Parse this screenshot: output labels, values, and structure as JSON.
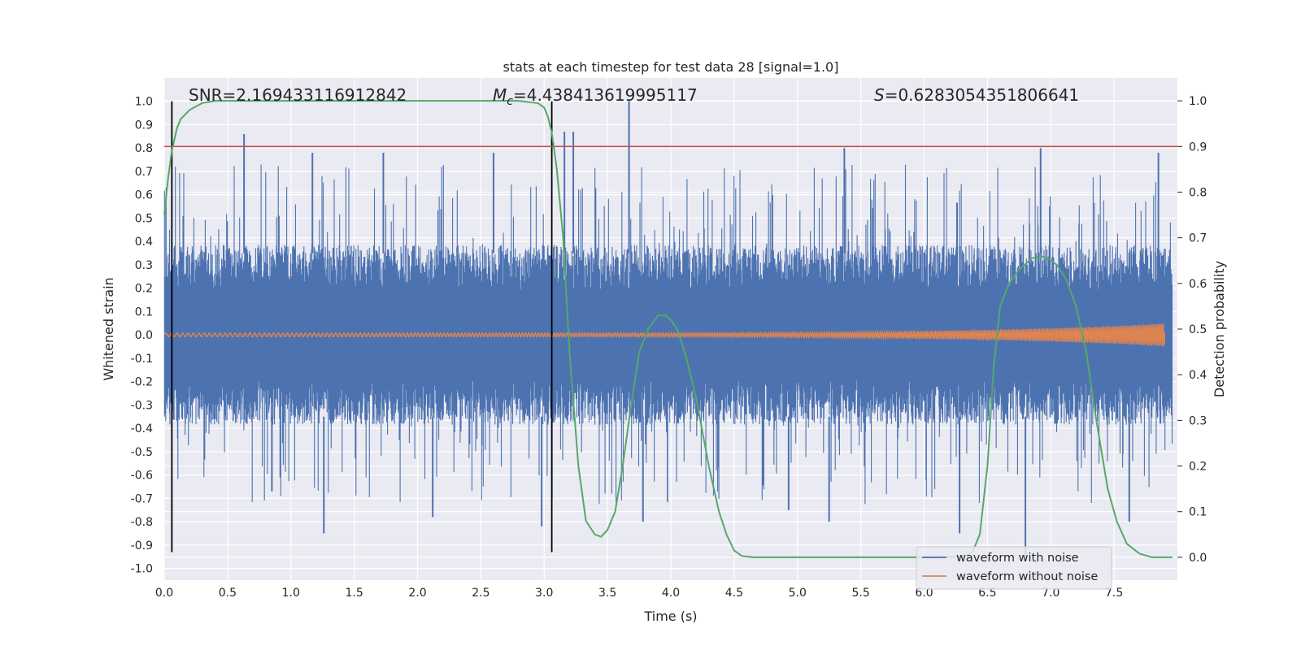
{
  "chart_data": {
    "type": "line",
    "title": "stats at each timestep for test data 28 [signal=1.0]",
    "xlabel": "Time (s)",
    "ylabel_left": "Whitened strain",
    "ylabel_right": "Detection probability",
    "xlim": [
      0.0,
      8.0
    ],
    "ylim_left": [
      -1.05,
      1.1
    ],
    "ylim_right": [
      -0.05,
      1.05
    ],
    "xticks": [
      "0.0",
      "0.5",
      "1.0",
      "1.5",
      "2.0",
      "2.5",
      "3.0",
      "3.5",
      "4.0",
      "4.5",
      "5.0",
      "5.5",
      "6.0",
      "6.5",
      "7.0",
      "7.5"
    ],
    "yticks_left": [
      "1.0",
      "0.9",
      "0.8",
      "0.7",
      "0.6",
      "0.5",
      "0.4",
      "0.3",
      "0.2",
      "0.1",
      "0.0",
      "-0.1",
      "-0.2",
      "-0.3",
      "-0.4",
      "-0.5",
      "-0.6",
      "-0.7",
      "-0.8",
      "-0.9",
      "-1.0"
    ],
    "yticks_right": [
      "1.0",
      "0.9",
      "0.8",
      "0.7",
      "0.6",
      "0.5",
      "0.4",
      "0.3",
      "0.2",
      "0.1",
      "0.0"
    ],
    "grid": true,
    "legend_position": "lower-right",
    "annotations": {
      "snr": "SNR=2.169433116912842",
      "mc_symbol": "M",
      "mc_sub": "c",
      "mc_value": "=4.438413619995117",
      "s_symbol": "S",
      "s_value": "=0.6283054351806641"
    },
    "threshold_probability": 0.9,
    "vertical_markers_s": [
      0.06,
      3.06
    ],
    "series": [
      {
        "name": "waveform with noise",
        "color": "#4c72b0",
        "axis": "left",
        "envelope_typical": 0.35,
        "peaks": [
          {
            "x": 0.63,
            "y": 0.86
          },
          {
            "x": 1.17,
            "y": 0.78
          },
          {
            "x": 1.73,
            "y": 0.78
          },
          {
            "x": 2.6,
            "y": 0.78
          },
          {
            "x": 3.16,
            "y": 0.87
          },
          {
            "x": 3.23,
            "y": 0.87
          },
          {
            "x": 3.67,
            "y": 1.0
          },
          {
            "x": 5.37,
            "y": 0.8
          },
          {
            "x": 6.92,
            "y": 0.8
          },
          {
            "x": 7.85,
            "y": 0.78
          },
          {
            "x": 1.26,
            "y": -0.85
          },
          {
            "x": 2.98,
            "y": -0.82
          },
          {
            "x": 3.78,
            "y": -0.8
          },
          {
            "x": 6.28,
            "y": -0.85
          },
          {
            "x": 6.8,
            "y": -0.95
          },
          {
            "x": 0.85,
            "y": -0.67
          },
          {
            "x": 2.12,
            "y": -0.78
          },
          {
            "x": 5.25,
            "y": -0.8
          },
          {
            "x": 7.62,
            "y": -0.8
          },
          {
            "x": 4.93,
            "y": -0.75
          }
        ]
      },
      {
        "name": "waveform without noise",
        "color": "#dd8452",
        "axis": "left",
        "amplitude_start": 0.008,
        "amplitude_end": 0.05,
        "chirp_end_s": 7.9
      },
      {
        "name": "detection probability",
        "color": "#55a868",
        "axis": "right",
        "x": [
          0.0,
          0.03,
          0.06,
          0.1,
          0.13,
          0.2,
          0.3,
          0.4,
          0.6,
          1.0,
          2.0,
          2.8,
          2.95,
          3.0,
          3.03,
          3.06,
          3.1,
          3.15,
          3.2,
          3.27,
          3.33,
          3.4,
          3.45,
          3.5,
          3.56,
          3.62,
          3.68,
          3.75,
          3.82,
          3.9,
          3.96,
          4.0,
          4.05,
          4.12,
          4.2,
          4.3,
          4.38,
          4.44,
          4.5,
          4.56,
          4.65,
          5.0,
          5.5,
          6.0,
          6.3,
          6.38,
          6.44,
          6.5,
          6.55,
          6.6,
          6.67,
          6.75,
          6.85,
          6.92,
          6.98,
          7.05,
          7.12,
          7.2,
          7.28,
          7.36,
          7.45,
          7.52,
          7.6,
          7.7,
          7.8,
          7.96
        ],
        "y": [
          0.75,
          0.83,
          0.89,
          0.94,
          0.96,
          0.98,
          0.995,
          1.0,
          1.0,
          1.0,
          1.0,
          1.0,
          0.995,
          0.985,
          0.965,
          0.93,
          0.85,
          0.7,
          0.45,
          0.2,
          0.08,
          0.05,
          0.045,
          0.06,
          0.1,
          0.2,
          0.32,
          0.45,
          0.5,
          0.53,
          0.53,
          0.52,
          0.5,
          0.44,
          0.35,
          0.2,
          0.1,
          0.05,
          0.015,
          0.003,
          0.0,
          0.0,
          0.0,
          0.0,
          0.002,
          0.01,
          0.05,
          0.2,
          0.42,
          0.55,
          0.6,
          0.63,
          0.655,
          0.66,
          0.655,
          0.64,
          0.61,
          0.55,
          0.45,
          0.3,
          0.15,
          0.08,
          0.03,
          0.008,
          0.0,
          0.0
        ]
      }
    ]
  }
}
